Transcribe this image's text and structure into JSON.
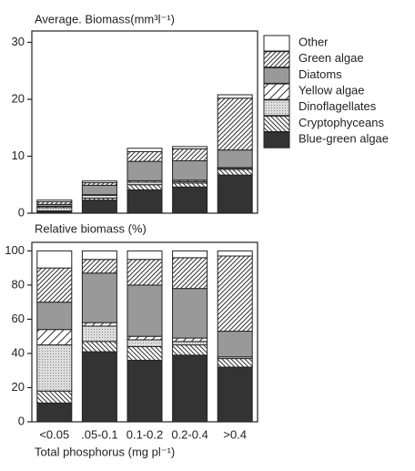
{
  "chart_data": [
    {
      "type": "stacked-bar",
      "title": "Average. Biomass(mm³l⁻¹)",
      "ylim": [
        0,
        32
      ],
      "yticks": [
        0,
        10,
        20,
        30
      ],
      "legend": "right",
      "series": [
        {
          "name": "Blue-green algae",
          "color": "#333333",
          "pattern": "none",
          "values": [
            0.25,
            2.3,
            4.1,
            4.6,
            6.7
          ]
        },
        {
          "name": "Cryptophyceans",
          "color": "#ffffff",
          "pattern": "backslash",
          "values": [
            0.15,
            0.35,
            0.9,
            0.7,
            1.0
          ]
        },
        {
          "name": "Dinoflagellates",
          "color": "#dddddd",
          "pattern": "dots",
          "values": [
            0.6,
            0.5,
            0.45,
            0.25,
            0.2
          ]
        },
        {
          "name": "Yellow algae",
          "color": "#ffffff",
          "pattern": "slash-wide",
          "values": [
            0.2,
            0.1,
            0.25,
            0.25,
            0.1
          ]
        },
        {
          "name": "Diatoms",
          "color": "#999999",
          "pattern": "none",
          "values": [
            0.35,
            1.65,
            3.4,
            3.4,
            3.1
          ]
        },
        {
          "name": "Green algae",
          "color": "#ffffff",
          "pattern": "slash",
          "values": [
            0.45,
            0.45,
            1.7,
            2.1,
            9.1
          ]
        },
        {
          "name": "Other",
          "color": "#ffffff",
          "pattern": "none",
          "values": [
            0.3,
            0.3,
            0.6,
            0.4,
            0.6
          ]
        }
      ]
    },
    {
      "type": "stacked-bar",
      "title": "Relative biomass (%)",
      "x_label": "Total phosphorus (mg pl⁻¹)",
      "categories": [
        "<0.05",
        ".05-0.1",
        "0.1-0.2",
        "0.2-0.4",
        ">0.4"
      ],
      "ylim": [
        0,
        105
      ],
      "yticks": [
        0,
        20,
        40,
        60,
        80,
        100
      ],
      "series": [
        {
          "color": "#333333",
          "pattern": "none",
          "values": [
            11,
            41,
            36,
            39,
            32
          ]
        },
        {
          "color": "#ffffff",
          "pattern": "backslash",
          "values": [
            7,
            6,
            8,
            6,
            5
          ]
        },
        {
          "color": "#dddddd",
          "pattern": "dots",
          "values": [
            27,
            9,
            4,
            2,
            1
          ]
        },
        {
          "color": "#ffffff",
          "pattern": "slash-wide",
          "values": [
            9,
            2,
            2,
            2,
            0
          ]
        },
        {
          "color": "#999999",
          "pattern": "none",
          "values": [
            16,
            29,
            30,
            29,
            15
          ]
        },
        {
          "color": "#ffffff",
          "pattern": "slash",
          "values": [
            20,
            8,
            15,
            18,
            44
          ]
        },
        {
          "color": "#ffffff",
          "pattern": "none",
          "values": [
            10,
            5,
            5,
            4,
            3
          ]
        }
      ]
    }
  ]
}
